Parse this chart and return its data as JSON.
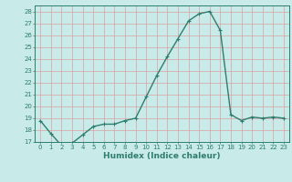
{
  "x": [
    0,
    1,
    2,
    3,
    4,
    5,
    6,
    7,
    8,
    9,
    10,
    11,
    12,
    13,
    14,
    15,
    16,
    17,
    18,
    19,
    20,
    21,
    22,
    23
  ],
  "y": [
    18.8,
    17.7,
    16.7,
    16.9,
    17.6,
    18.3,
    18.5,
    18.5,
    18.8,
    19.0,
    20.8,
    22.6,
    24.2,
    25.7,
    27.2,
    27.8,
    28.0,
    26.4,
    19.3,
    18.8,
    19.1,
    19.0,
    19.1,
    19.0
  ],
  "line_color": "#2e7d6e",
  "marker": "+",
  "marker_size": 3,
  "bg_color": "#c8eae8",
  "grid_color": "#d9a0a0",
  "xlabel": "Humidex (Indice chaleur)",
  "ylim": [
    17,
    28.5
  ],
  "xlim": [
    -0.5,
    23.5
  ],
  "yticks": [
    17,
    18,
    19,
    20,
    21,
    22,
    23,
    24,
    25,
    26,
    27,
    28
  ],
  "xticks": [
    0,
    1,
    2,
    3,
    4,
    5,
    6,
    7,
    8,
    9,
    10,
    11,
    12,
    13,
    14,
    15,
    16,
    17,
    18,
    19,
    20,
    21,
    22,
    23
  ],
  "tick_color": "#2e7d6e",
  "label_color": "#2e7d6e",
  "tick_fontsize": 5,
  "xlabel_fontsize": 6.5,
  "linewidth": 1.0
}
